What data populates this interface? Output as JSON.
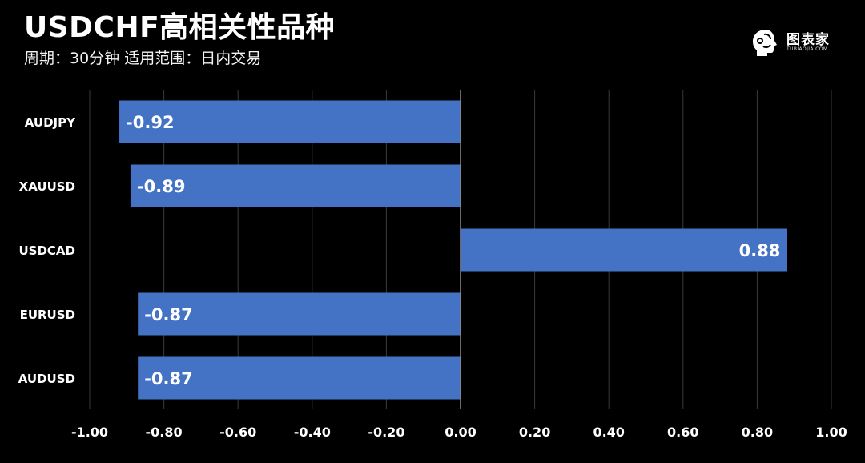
{
  "header": {
    "title": "USDCHF高相关性品种",
    "subtitle": "周期：30分钟  适用范围：日内交易"
  },
  "logo": {
    "text": "图表家",
    "subtext": "TUBIAOJIA.COM",
    "icon": "brain-head-icon"
  },
  "colors": {
    "background": "#000000",
    "bar": "#4472c4",
    "grid": "#3a3a3a",
    "zero_line": "#8c8c8c",
    "text": "#ffffff"
  },
  "chart_data": {
    "type": "bar",
    "orientation": "horizontal",
    "categories": [
      "AUDJPY",
      "XAUUSD",
      "USDCAD",
      "EURUSD",
      "AUDUSD"
    ],
    "values": [
      -0.92,
      -0.89,
      0.88,
      -0.87,
      -0.87
    ],
    "data_labels": [
      "-0.92",
      "-0.89",
      "0.88",
      "-0.87",
      "-0.87"
    ],
    "xlim": [
      -1.0,
      1.0
    ],
    "x_ticks": [
      -1.0,
      -0.8,
      -0.6,
      -0.4,
      -0.2,
      0.0,
      0.2,
      0.4,
      0.6,
      0.8,
      1.0
    ],
    "x_tick_labels": [
      "-1.00",
      "-0.80",
      "-0.60",
      "-0.40",
      "-0.20",
      "0.00",
      "0.20",
      "0.40",
      "0.60",
      "0.80",
      "1.00"
    ],
    "grid": true,
    "legend": "none"
  }
}
